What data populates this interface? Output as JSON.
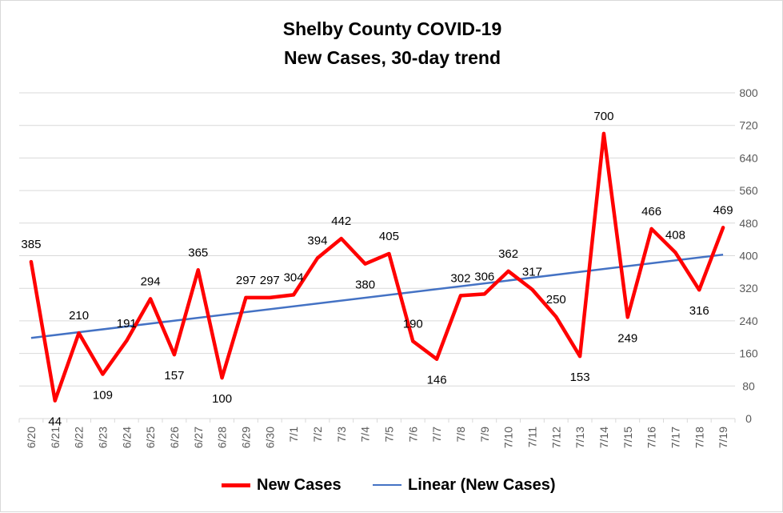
{
  "chart_data": {
    "type": "line",
    "title": "Shelby County COVID-19",
    "subtitle": "New Cases, 30-day trend",
    "categories": [
      "6/20",
      "6/21",
      "6/22",
      "6/23",
      "6/24",
      "6/25",
      "6/26",
      "6/27",
      "6/28",
      "6/29",
      "6/30",
      "7/1",
      "7/2",
      "7/3",
      "7/4",
      "7/5",
      "7/6",
      "7/7",
      "7/8",
      "7/9",
      "7/10",
      "7/11",
      "7/12",
      "7/13",
      "7/14",
      "7/15",
      "7/16",
      "7/17",
      "7/18",
      "7/19"
    ],
    "series": [
      {
        "name": "New Cases",
        "color": "#ff0000",
        "values": [
          385,
          44,
          210,
          109,
          191,
          294,
          157,
          365,
          100,
          297,
          297,
          304,
          394,
          442,
          380,
          405,
          190,
          146,
          302,
          306,
          362,
          317,
          250,
          153,
          700,
          249,
          466,
          408,
          316,
          469
        ]
      },
      {
        "name": "Linear (New Cases)",
        "color": "#4472c4",
        "trendline": "linear"
      }
    ],
    "ylim": [
      0,
      800
    ],
    "yticks": [
      0,
      80,
      160,
      240,
      320,
      400,
      480,
      560,
      640,
      720,
      800
    ],
    "y_axis_side": "right",
    "grid": true,
    "legend": "bottom"
  }
}
